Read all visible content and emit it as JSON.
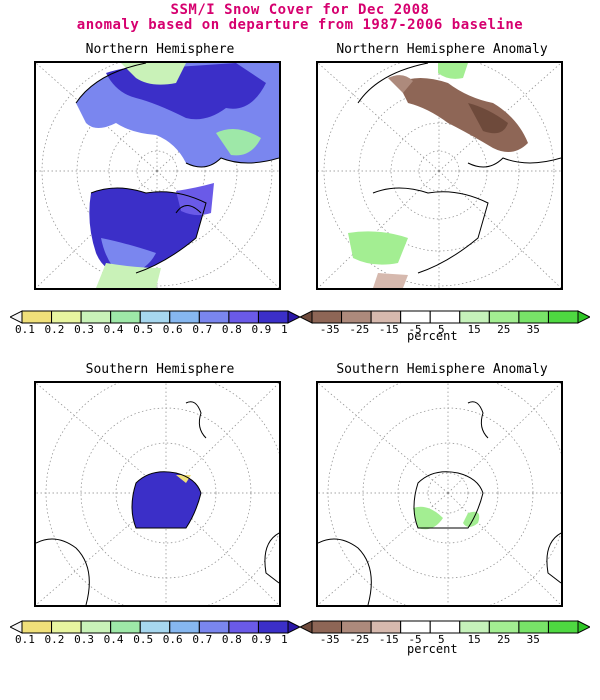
{
  "title": {
    "line1": "SSM/I Snow Cover for Dec 2008",
    "line2": "anomaly based on departure from 1987-2006 baseline"
  },
  "panels": {
    "nh": {
      "title": "Northern Hemisphere"
    },
    "nha": {
      "title": "Northern Hemisphere Anomaly"
    },
    "sh": {
      "title": "Southern Hemisphere"
    },
    "sha": {
      "title": "Southern Hemisphere Anomaly"
    }
  },
  "colorbar_cover": {
    "labels": [
      "0.1",
      "0.2",
      "0.3",
      "0.4",
      "0.5",
      "0.6",
      "0.7",
      "0.8",
      "0.9",
      "1"
    ],
    "colors": [
      "#f5f5f5",
      "#f0e07a",
      "#e8f5a0",
      "#c9f2b8",
      "#9ee8a8",
      "#a7d7ef",
      "#86b7f0",
      "#7a86ef",
      "#6a5ae8",
      "#3b2fc8",
      "#2c19a8"
    ]
  },
  "colorbar_anomaly": {
    "labels": [
      "-35",
      "-25",
      "-15",
      "-5",
      "5",
      "15",
      "25",
      "35"
    ],
    "unit": "percent",
    "colors": [
      "#6e4a3b",
      "#8e6656",
      "#ad8a7c",
      "#d6b9ae",
      "#ffffff",
      "#ffffff",
      "#c6f2bb",
      "#a3ee92",
      "#78e368",
      "#4ed841",
      "#2fc626"
    ]
  },
  "colors": {
    "title": "#d6006f",
    "grid": "#888888",
    "coast": "#000000",
    "snow_high": "#3b2fc8",
    "snow_mid": "#7a86ef",
    "snow_low": "#c9f2b8",
    "anom_neg": "#8e6656",
    "anom_pos": "#a3ee92"
  }
}
